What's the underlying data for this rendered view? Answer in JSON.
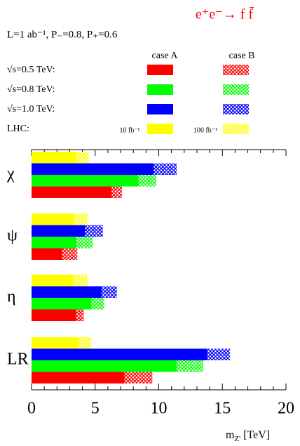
{
  "chart_data": {
    "type": "bar",
    "orientation": "horizontal",
    "title": "e⁺e⁻→ f f̄",
    "subtitle": "L=1 ab⁻¹,  P₋=0.8, P₊=0.6",
    "x_label": {
      "text": "m",
      "subscript": "Z'",
      "unit": "[TeV]"
    },
    "legend_header": [
      "case A",
      "case B"
    ],
    "categories": [
      "χ",
      "ψ",
      "η",
      "LR"
    ],
    "series": [
      {
        "name": "LHC:",
        "color": "#ffff00",
        "case_labels": [
          "10 fb⁻¹",
          "100 fb⁻¹"
        ],
        "values": [
          3.5,
          3.3,
          3.3,
          3.7
        ],
        "values_case_b": [
          4.5,
          4.4,
          4.4,
          4.7
        ]
      },
      {
        "name": "√s=1.0 TeV:",
        "color": "#0000ff",
        "values": [
          9.6,
          4.2,
          5.5,
          13.8
        ],
        "values_case_b": [
          11.4,
          5.6,
          6.7,
          15.6
        ]
      },
      {
        "name": "√s=0.8 TeV:",
        "color": "#00ff00",
        "values": [
          8.4,
          3.5,
          4.7,
          11.4
        ],
        "values_case_b": [
          9.8,
          4.8,
          5.7,
          13.5
        ]
      },
      {
        "name": "√s=0.5 TeV:",
        "color": "#ff0000",
        "values": [
          6.3,
          2.4,
          3.5,
          7.3
        ],
        "values_case_b": [
          7.1,
          3.6,
          4.1,
          9.5
        ]
      }
    ],
    "xlim": [
      0,
      20
    ],
    "xticks": [
      0,
      5,
      10,
      15,
      20
    ]
  }
}
